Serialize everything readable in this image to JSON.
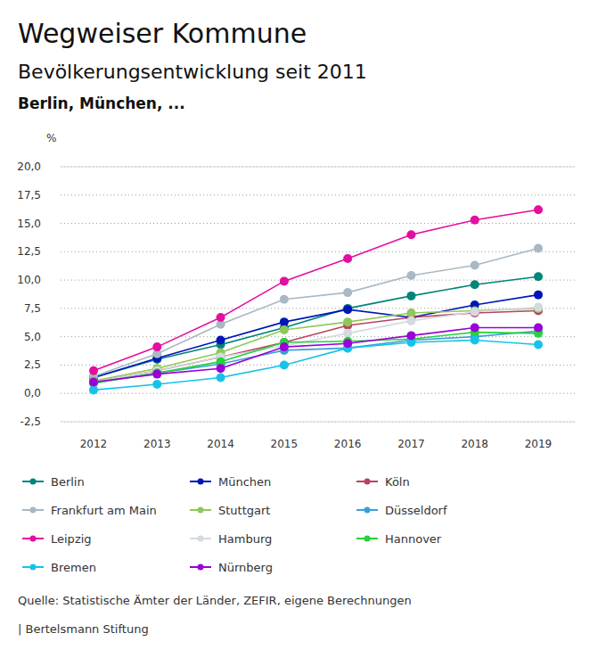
{
  "chart_data": {
    "type": "line",
    "title": "Wegweiser Kommune",
    "subtitle": "Bevölkerungsentwicklung seit 2011",
    "description": "Berlin, München, ...",
    "y_label": "%",
    "source": "Quelle: Statistische Ämter der Länder, ZEFIR, eigene Berechnungen",
    "credit": "| Bertelsmann Stiftung",
    "categories": [
      "2012",
      "2013",
      "2014",
      "2015",
      "2016",
      "2017",
      "2018",
      "2019"
    ],
    "ylim": [
      -2.5,
      20
    ],
    "yticks": [
      {
        "value": -2.5,
        "label": "-2,5"
      },
      {
        "value": 0,
        "label": "0,0"
      },
      {
        "value": 2.5,
        "label": "2,5"
      },
      {
        "value": 5,
        "label": "5,0"
      },
      {
        "value": 7.5,
        "label": "7,5"
      },
      {
        "value": 10,
        "label": "10,0"
      },
      {
        "value": 12.5,
        "label": "12,5"
      },
      {
        "value": 15,
        "label": "15,0"
      },
      {
        "value": 17.5,
        "label": "17,5"
      },
      {
        "value": 20,
        "label": "20,0"
      }
    ],
    "grid": true,
    "legend": "bottom",
    "marker": "circle",
    "series": [
      {
        "name": "Berlin",
        "color": "#00857a",
        "values": [
          1.4,
          3.0,
          4.3,
          5.8,
          7.5,
          8.6,
          9.6,
          10.3
        ]
      },
      {
        "name": "München",
        "color": "#0016b8",
        "values": [
          1.4,
          3.1,
          4.7,
          6.3,
          7.4,
          6.7,
          7.8,
          8.7
        ]
      },
      {
        "name": "Köln",
        "color": "#b8435e",
        "values": [
          1.0,
          2.0,
          3.2,
          4.5,
          6.0,
          6.7,
          7.1,
          7.3
        ]
      },
      {
        "name": "Frankfurt am Main",
        "color": "#a9b8c3",
        "values": [
          1.5,
          3.5,
          6.1,
          8.3,
          8.9,
          10.4,
          11.3,
          12.8
        ]
      },
      {
        "name": "Stuttgart",
        "color": "#8fc85a",
        "values": [
          1.1,
          2.2,
          3.6,
          5.6,
          6.3,
          7.1,
          7.3,
          7.5
        ]
      },
      {
        "name": "Düsseldorf",
        "color": "#3aa0d8",
        "values": [
          0.9,
          1.8,
          2.6,
          3.8,
          4.0,
          4.7,
          5.0,
          5.5
        ]
      },
      {
        "name": "Leipzig",
        "color": "#e40ea0",
        "values": [
          2.0,
          4.1,
          6.7,
          9.9,
          11.9,
          14.0,
          15.3,
          16.2
        ]
      },
      {
        "name": "Hamburg",
        "color": "#d4dae0",
        "values": [
          1.0,
          2.0,
          3.2,
          4.2,
          5.3,
          6.4,
          7.2,
          7.6
        ]
      },
      {
        "name": "Hannover",
        "color": "#25d23a",
        "values": [
          0.9,
          1.8,
          2.8,
          4.5,
          4.6,
          4.8,
          5.4,
          5.3
        ]
      },
      {
        "name": "Bremen",
        "color": "#16c3e8",
        "values": [
          0.3,
          0.8,
          1.4,
          2.5,
          4.0,
          4.5,
          4.7,
          4.3
        ]
      },
      {
        "name": "Nürnberg",
        "color": "#9b00d6",
        "values": [
          1.0,
          1.7,
          2.2,
          4.1,
          4.4,
          5.1,
          5.8,
          5.8
        ]
      }
    ]
  }
}
